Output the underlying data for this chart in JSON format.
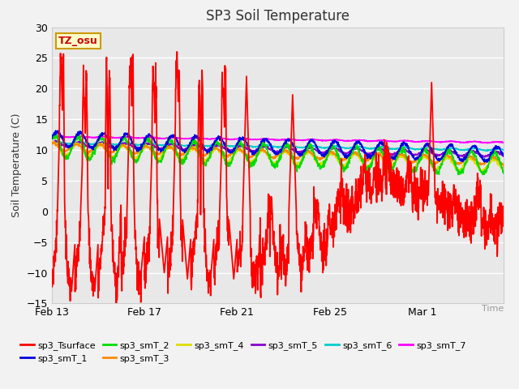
{
  "title": "SP3 Soil Temperature",
  "ylabel": "Soil Temperature (C)",
  "xlabel": "Time",
  "ylim": [
    -15,
    30
  ],
  "yticks": [
    -15,
    -10,
    -5,
    0,
    5,
    10,
    15,
    20,
    25,
    30
  ],
  "plot_bg_color": "#e8e8e8",
  "grid_color": "#ffffff",
  "tz_label": "TZ_osu",
  "legend_entries": [
    {
      "label": "sp3_Tsurface",
      "color": "#ff0000"
    },
    {
      "label": "sp3_smT_1",
      "color": "#0000dd"
    },
    {
      "label": "sp3_smT_2",
      "color": "#00dd00"
    },
    {
      "label": "sp3_smT_3",
      "color": "#ff8800"
    },
    {
      "label": "sp3_smT_4",
      "color": "#dddd00"
    },
    {
      "label": "sp3_smT_5",
      "color": "#8800cc"
    },
    {
      "label": "sp3_smT_6",
      "color": "#00cccc"
    },
    {
      "label": "sp3_smT_7",
      "color": "#ff00ff"
    }
  ],
  "xticklabels": [
    "Feb 13",
    "Feb 17",
    "Feb 21",
    "Feb 25",
    "Mar 1"
  ],
  "xtick_positions": [
    0,
    4,
    8,
    12,
    16
  ],
  "xlim": [
    0,
    19.5
  ],
  "n_points": 2000,
  "n_days": 20
}
